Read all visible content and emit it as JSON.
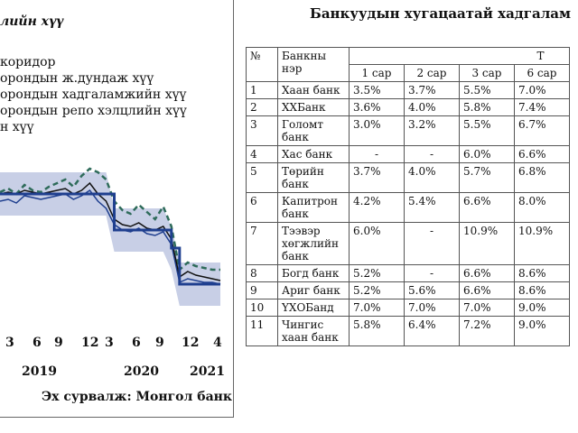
{
  "chart": {
    "title": "лийн хүү",
    "legend": [
      "коридор",
      "орондын ж.дундаж хүү",
      "орондын хадгаламжийн хүү",
      "орондын репо хэлцлийн хүү",
      "н хүү"
    ],
    "x_ticks": [
      "3",
      "6",
      "9",
      "12",
      "3",
      "6",
      "9",
      "12",
      "4"
    ],
    "years": [
      "2019",
      "2020",
      "2021"
    ],
    "source": "Эх сурвалж: Монгол банк",
    "colors": {
      "navy": "#1f3f8f",
      "teal": "#2e6b5a",
      "black": "#111111",
      "band": "#c8cfe6"
    }
  },
  "chart_data": {
    "type": "line",
    "x": [
      "2019-01",
      "2019-02",
      "2019-03",
      "2019-04",
      "2019-05",
      "2019-06",
      "2019-07",
      "2019-08",
      "2019-09",
      "2019-10",
      "2019-11",
      "2019-12",
      "2020-01",
      "2020-02",
      "2020-03",
      "2020-04",
      "2020-05",
      "2020-06",
      "2020-07",
      "2020-08",
      "2020-09",
      "2020-10",
      "2020-11",
      "2020-12",
      "2021-01",
      "2021-02",
      "2021-03",
      "2021-04"
    ],
    "series": [
      {
        "values": [
          11.0,
          11.0,
          11.0,
          11.0,
          11.0,
          11.0,
          11.0,
          11.0,
          11.0,
          11.0,
          11.0,
          11.0,
          11.0,
          11.0,
          9.0,
          9.0,
          9.0,
          9.0,
          9.0,
          9.0,
          9.0,
          8.0,
          6.0,
          6.0,
          6.0,
          6.0,
          6.0,
          6.0
        ]
      },
      {
        "values": [
          11.0,
          11.1,
          11.0,
          11.2,
          11.1,
          11.0,
          11.1,
          11.2,
          11.3,
          11.0,
          11.2,
          11.6,
          11.0,
          10.6,
          9.6,
          9.3,
          9.2,
          9.4,
          9.1,
          9.0,
          9.2,
          8.5,
          6.4,
          6.7,
          6.5,
          6.4,
          6.3,
          6.2
        ]
      },
      {
        "values": [
          11.1,
          11.3,
          11.0,
          11.5,
          11.2,
          11.1,
          11.4,
          11.6,
          11.8,
          11.4,
          12.0,
          12.4,
          12.2,
          11.8,
          10.6,
          10.1,
          9.9,
          10.4,
          10.0,
          9.6,
          10.3,
          9.2,
          6.8,
          7.2,
          7.0,
          6.9,
          6.8,
          6.8
        ]
      },
      {
        "values": [
          10.6,
          10.7,
          10.5,
          10.9,
          10.8,
          10.7,
          10.8,
          10.9,
          11.0,
          10.7,
          10.9,
          11.2,
          10.6,
          10.2,
          9.3,
          9.0,
          8.9,
          9.1,
          8.8,
          8.7,
          8.9,
          8.2,
          6.1,
          6.3,
          6.2,
          6.1,
          6.1,
          6.0
        ]
      }
    ]
  },
  "table": {
    "title": "Банкуудын хугацаатай хадгалам",
    "header": {
      "no": "№",
      "bank": "Банкны нэр",
      "group": "Т",
      "terms": [
        "1 сар",
        "2 сар",
        "3 сар",
        "6 сар"
      ]
    },
    "rows": [
      {
        "no": "1",
        "bank": [
          "Хаан банк"
        ],
        "rates": [
          "3.5%",
          "3.7%",
          "5.5%",
          "7.0%"
        ]
      },
      {
        "no": "2",
        "bank": [
          "ХХБанк"
        ],
        "rates": [
          "3.6%",
          "4.0%",
          "5.8%",
          "7.4%"
        ]
      },
      {
        "no": "3",
        "bank": [
          "Голомт",
          "банк"
        ],
        "rates": [
          "3.0%",
          "3.2%",
          "5.5%",
          "6.7%"
        ]
      },
      {
        "no": "4",
        "bank": [
          "Хас банк"
        ],
        "rates": [
          "-",
          "-",
          "6.0%",
          "6.6%"
        ]
      },
      {
        "no": "5",
        "bank": [
          "Төрийн",
          "банк"
        ],
        "rates": [
          "3.7%",
          "4.0%",
          "5.7%",
          "6.8%"
        ]
      },
      {
        "no": "6",
        "bank": [
          "Капитрон",
          "банк"
        ],
        "rates": [
          "4.2%",
          "5.4%",
          "6.6%",
          "8.0%"
        ]
      },
      {
        "no": "7",
        "bank": [
          "Тээвэр",
          "хөгжлийн",
          "банк"
        ],
        "rates": [
          "6.0%",
          "-",
          "10.9%",
          "10.9%"
        ]
      },
      {
        "no": "8",
        "bank": [
          "Богд банк"
        ],
        "rates": [
          "5.2%",
          "-",
          "6.6%",
          "8.6%"
        ]
      },
      {
        "no": "9",
        "bank": [
          "Ариг банк"
        ],
        "rates": [
          "5.2%",
          "5.6%",
          "6.6%",
          "8.6%"
        ]
      },
      {
        "no": "10",
        "bank": [
          "ҮХОБанд"
        ],
        "rates": [
          "7.0%",
          "7.0%",
          "7.0%",
          "9.0%"
        ]
      },
      {
        "no": "11",
        "bank": [
          "Чингис",
          "хаан банк"
        ],
        "rates": [
          "5.8%",
          "6.4%",
          "7.2%",
          "9.0%"
        ]
      }
    ]
  }
}
